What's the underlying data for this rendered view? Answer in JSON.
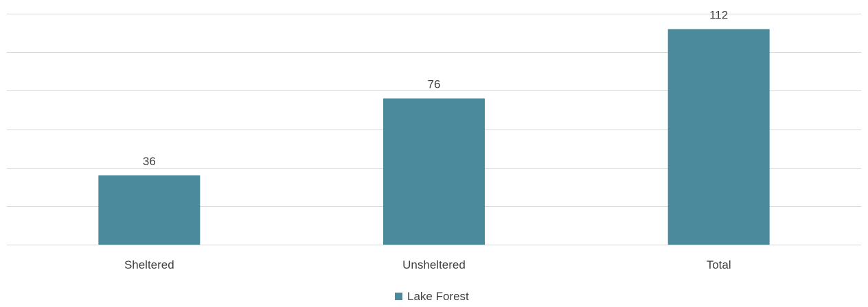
{
  "chart_data": {
    "type": "bar",
    "categories": [
      "Sheltered",
      "Unsheltered",
      "Total"
    ],
    "series": [
      {
        "name": "Lake Forest",
        "values": [
          36,
          76,
          112
        ],
        "color": "#4a8a9c"
      }
    ],
    "data_labels": [
      "36",
      "76",
      "112"
    ],
    "ylim": [
      0,
      120
    ],
    "gridline_step": 20,
    "grid": true,
    "legend_position": "bottom",
    "colors": {
      "bar": "#4a8a9c",
      "gridline": "#d9d9d9",
      "text": "#404040"
    }
  }
}
